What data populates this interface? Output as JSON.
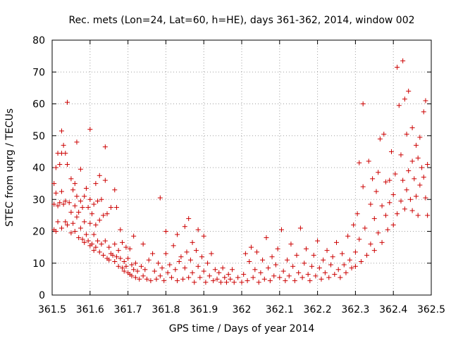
{
  "chart_data": {
    "type": "scatter",
    "title": "Rec. mets (Lon=24, Lat=60, h=HE), days 361-362, 2014, window 002",
    "xlabel": "GPS time / Days of year 2014",
    "ylabel": "STEC from uqrg / TECUs",
    "xlim": [
      361.5,
      362.5
    ],
    "ylim": [
      0,
      80
    ],
    "xticks": [
      361.5,
      361.6,
      361.7,
      361.8,
      361.9,
      362,
      362.1,
      362.2,
      362.3,
      362.4,
      362.5
    ],
    "xtick_labels": [
      "361.5",
      "361.6",
      "361.7",
      "361.8",
      "361.9",
      "362",
      "362.1",
      "362.2",
      "362.3",
      "362.4",
      "362.5"
    ],
    "yticks": [
      0,
      10,
      20,
      30,
      40,
      50,
      60,
      70,
      80
    ],
    "ytick_labels": [
      "0",
      "10",
      "20",
      "30",
      "40",
      "50",
      "60",
      "70",
      "80"
    ],
    "grid": true,
    "marker": "+",
    "color": "#cc0000",
    "series": [
      {
        "name": "STEC",
        "points": [
          [
            361.505,
            35.0
          ],
          [
            361.505,
            28.5
          ],
          [
            361.505,
            20.5
          ],
          [
            361.51,
            40.0
          ],
          [
            361.51,
            32.0
          ],
          [
            361.51,
            20.0
          ],
          [
            361.515,
            44.5
          ],
          [
            361.515,
            28.0
          ],
          [
            361.515,
            23.0
          ],
          [
            361.52,
            41.0
          ],
          [
            361.52,
            29.0
          ],
          [
            361.525,
            51.5
          ],
          [
            361.525,
            44.5
          ],
          [
            361.525,
            32.5
          ],
          [
            361.525,
            21.0
          ],
          [
            361.53,
            47.0
          ],
          [
            361.53,
            28.5
          ],
          [
            361.535,
            44.5
          ],
          [
            361.535,
            29.5
          ],
          [
            361.535,
            23.0
          ],
          [
            361.54,
            60.5
          ],
          [
            361.54,
            41.0
          ],
          [
            361.54,
            22.0
          ],
          [
            361.545,
            29.0
          ],
          [
            361.55,
            36.5
          ],
          [
            361.55,
            26.0
          ],
          [
            361.55,
            19.5
          ],
          [
            361.555,
            33.0
          ],
          [
            361.555,
            22.5
          ],
          [
            361.56,
            35.0
          ],
          [
            361.56,
            28.0
          ],
          [
            361.56,
            20.0
          ],
          [
            361.565,
            48.0
          ],
          [
            361.565,
            31.0
          ],
          [
            361.565,
            24.5
          ],
          [
            361.57,
            26.0
          ],
          [
            361.57,
            18.0
          ],
          [
            361.575,
            39.5
          ],
          [
            361.575,
            29.5
          ],
          [
            361.575,
            21.0
          ],
          [
            361.58,
            27.5
          ],
          [
            361.58,
            17.5
          ],
          [
            361.585,
            31.0
          ],
          [
            361.585,
            23.0
          ],
          [
            361.585,
            16.5
          ],
          [
            361.59,
            33.5
          ],
          [
            361.59,
            19.0
          ],
          [
            361.595,
            27.5
          ],
          [
            361.595,
            17.0
          ],
          [
            361.6,
            52.0
          ],
          [
            361.6,
            30.0
          ],
          [
            361.6,
            22.5
          ],
          [
            361.6,
            15.5
          ],
          [
            361.605,
            25.5
          ],
          [
            361.605,
            16.0
          ],
          [
            361.61,
            28.5
          ],
          [
            361.61,
            19.0
          ],
          [
            361.61,
            14.0
          ],
          [
            361.615,
            35.0
          ],
          [
            361.615,
            22.0
          ],
          [
            361.615,
            15.0
          ],
          [
            361.62,
            29.5
          ],
          [
            361.62,
            17.0
          ],
          [
            361.625,
            37.5
          ],
          [
            361.625,
            23.5
          ],
          [
            361.625,
            13.5
          ],
          [
            361.63,
            30.0
          ],
          [
            361.63,
            16.0
          ],
          [
            361.635,
            25.0
          ],
          [
            361.635,
            12.5
          ],
          [
            361.64,
            46.5
          ],
          [
            361.64,
            36.0
          ],
          [
            361.64,
            17.0
          ],
          [
            361.645,
            25.5
          ],
          [
            361.645,
            11.5
          ],
          [
            361.65,
            15.0
          ],
          [
            361.65,
            11.0
          ],
          [
            361.655,
            27.5
          ],
          [
            361.655,
            13.0
          ],
          [
            361.66,
            12.5
          ],
          [
            361.665,
            33.0
          ],
          [
            361.665,
            16.0
          ],
          [
            361.665,
            10.5
          ],
          [
            361.67,
            27.5
          ],
          [
            361.67,
            12.0
          ],
          [
            361.675,
            14.0
          ],
          [
            361.675,
            9.0
          ],
          [
            361.68,
            20.5
          ],
          [
            361.68,
            11.5
          ],
          [
            361.685,
            16.5
          ],
          [
            361.685,
            8.5
          ],
          [
            361.69,
            10.5
          ],
          [
            361.69,
            7.5
          ],
          [
            361.695,
            15.0
          ],
          [
            361.695,
            9.0
          ],
          [
            361.7,
            11.5
          ],
          [
            361.7,
            7.0
          ],
          [
            361.705,
            14.5
          ],
          [
            361.705,
            6.5
          ],
          [
            361.71,
            9.5
          ],
          [
            361.71,
            6.0
          ],
          [
            361.715,
            18.5
          ],
          [
            361.715,
            8.0
          ],
          [
            361.72,
            10.0
          ],
          [
            361.72,
            5.5
          ],
          [
            361.725,
            7.5
          ],
          [
            361.73,
            5.0
          ],
          [
            361.735,
            9.0
          ],
          [
            361.74,
            16.0
          ],
          [
            361.74,
            6.0
          ],
          [
            361.745,
            8.0
          ],
          [
            361.75,
            5.0
          ],
          [
            361.755,
            11.0
          ],
          [
            361.76,
            4.5
          ],
          [
            361.765,
            13.0
          ],
          [
            361.77,
            7.5
          ],
          [
            361.775,
            5.0
          ],
          [
            361.78,
            10.0
          ],
          [
            361.785,
            30.5
          ],
          [
            361.785,
            6.0
          ],
          [
            361.79,
            8.5
          ],
          [
            361.795,
            4.5
          ],
          [
            361.8,
            13.0
          ],
          [
            361.8,
            20.0
          ],
          [
            361.805,
            7.0
          ],
          [
            361.81,
            9.5
          ],
          [
            361.815,
            5.5
          ],
          [
            361.82,
            15.5
          ],
          [
            361.825,
            8.0
          ],
          [
            361.83,
            19.0
          ],
          [
            361.83,
            4.5
          ],
          [
            361.835,
            10.5
          ],
          [
            361.84,
            12.0
          ],
          [
            361.845,
            5.0
          ],
          [
            361.85,
            21.5
          ],
          [
            361.85,
            8.5
          ],
          [
            361.855,
            13.5
          ],
          [
            361.86,
            24.0
          ],
          [
            361.86,
            5.5
          ],
          [
            361.865,
            11.0
          ],
          [
            361.87,
            16.5
          ],
          [
            361.87,
            7.0
          ],
          [
            361.875,
            4.0
          ],
          [
            361.88,
            14.0
          ],
          [
            361.885,
            20.5
          ],
          [
            361.885,
            9.0
          ],
          [
            361.89,
            5.5
          ],
          [
            361.895,
            12.0
          ],
          [
            361.9,
            18.5
          ],
          [
            361.9,
            7.5
          ],
          [
            361.905,
            4.0
          ],
          [
            361.91,
            10.0
          ],
          [
            361.915,
            6.0
          ],
          [
            361.92,
            13.0
          ],
          [
            361.925,
            4.5
          ],
          [
            361.93,
            8.0
          ],
          [
            361.935,
            5.0
          ],
          [
            361.94,
            7.0
          ],
          [
            361.945,
            4.0
          ],
          [
            361.95,
            8.5
          ],
          [
            361.955,
            5.5
          ],
          [
            361.96,
            4.0
          ],
          [
            361.965,
            6.5
          ],
          [
            361.97,
            5.0
          ],
          [
            361.975,
            8.0
          ],
          [
            361.98,
            4.0
          ],
          [
            361.99,
            5.5
          ],
          [
            362.0,
            4.0
          ],
          [
            362.005,
            6.5
          ],
          [
            362.01,
            13.0
          ],
          [
            362.015,
            4.5
          ],
          [
            362.02,
            10.5
          ],
          [
            362.025,
            15.0
          ],
          [
            362.03,
            5.5
          ],
          [
            362.035,
            8.0
          ],
          [
            362.04,
            13.5
          ],
          [
            362.045,
            4.0
          ],
          [
            362.05,
            7.0
          ],
          [
            362.055,
            11.0
          ],
          [
            362.06,
            5.0
          ],
          [
            362.065,
            18.0
          ],
          [
            362.07,
            8.5
          ],
          [
            362.075,
            4.5
          ],
          [
            362.08,
            12.0
          ],
          [
            362.085,
            6.0
          ],
          [
            362.09,
            9.5
          ],
          [
            362.095,
            14.5
          ],
          [
            362.1,
            5.5
          ],
          [
            362.105,
            20.5
          ],
          [
            362.11,
            7.5
          ],
          [
            362.115,
            4.5
          ],
          [
            362.12,
            11.0
          ],
          [
            362.125,
            6.0
          ],
          [
            362.13,
            16.0
          ],
          [
            362.135,
            9.0
          ],
          [
            362.14,
            4.5
          ],
          [
            362.145,
            12.5
          ],
          [
            362.15,
            7.0
          ],
          [
            362.155,
            21.0
          ],
          [
            362.16,
            5.5
          ],
          [
            362.165,
            10.0
          ],
          [
            362.17,
            14.5
          ],
          [
            362.175,
            6.5
          ],
          [
            362.18,
            4.5
          ],
          [
            362.185,
            9.0
          ],
          [
            362.19,
            12.5
          ],
          [
            362.195,
            6.0
          ],
          [
            362.2,
            17.0
          ],
          [
            362.205,
            8.5
          ],
          [
            362.21,
            5.0
          ],
          [
            362.215,
            11.0
          ],
          [
            362.22,
            7.0
          ],
          [
            362.225,
            14.0
          ],
          [
            362.23,
            5.5
          ],
          [
            362.235,
            9.5
          ],
          [
            362.24,
            12.0
          ],
          [
            362.245,
            6.5
          ],
          [
            362.25,
            16.5
          ],
          [
            362.255,
            8.0
          ],
          [
            362.26,
            5.5
          ],
          [
            362.265,
            13.0
          ],
          [
            362.27,
            9.5
          ],
          [
            362.275,
            7.0
          ],
          [
            362.28,
            18.5
          ],
          [
            362.285,
            11.0
          ],
          [
            362.29,
            8.5
          ],
          [
            362.295,
            22.0
          ],
          [
            362.3,
            13.5
          ],
          [
            362.3,
            9.0
          ],
          [
            362.305,
            25.5
          ],
          [
            362.31,
            41.5
          ],
          [
            362.31,
            17.5
          ],
          [
            362.315,
            10.5
          ],
          [
            362.32,
            60.0
          ],
          [
            362.32,
            34.0
          ],
          [
            362.325,
            21.0
          ],
          [
            362.33,
            12.5
          ],
          [
            362.335,
            42.0
          ],
          [
            362.34,
            28.5
          ],
          [
            362.34,
            16.0
          ],
          [
            362.345,
            36.5
          ],
          [
            362.35,
            24.0
          ],
          [
            362.35,
            14.0
          ],
          [
            362.355,
            32.5
          ],
          [
            362.36,
            38.5
          ],
          [
            362.36,
            19.5
          ],
          [
            362.365,
            49.0
          ],
          [
            362.37,
            28.0
          ],
          [
            362.37,
            16.5
          ],
          [
            362.375,
            50.5
          ],
          [
            362.38,
            35.5
          ],
          [
            362.38,
            25.0
          ],
          [
            362.385,
            20.5
          ],
          [
            362.39,
            36.0
          ],
          [
            362.39,
            29.0
          ],
          [
            362.395,
            45.0
          ],
          [
            362.4,
            31.5
          ],
          [
            362.4,
            22.0
          ],
          [
            362.405,
            38.0
          ],
          [
            362.41,
            71.5
          ],
          [
            362.41,
            25.5
          ],
          [
            362.415,
            59.5
          ],
          [
            362.42,
            44.0
          ],
          [
            362.42,
            29.5
          ],
          [
            362.425,
            73.5
          ],
          [
            362.425,
            36.0
          ],
          [
            362.43,
            61.5
          ],
          [
            362.43,
            27.0
          ],
          [
            362.435,
            50.5
          ],
          [
            362.435,
            33.0
          ],
          [
            362.44,
            64.0
          ],
          [
            362.44,
            39.0
          ],
          [
            362.445,
            30.0
          ],
          [
            362.45,
            52.5
          ],
          [
            362.45,
            42.0
          ],
          [
            362.45,
            26.5
          ],
          [
            362.455,
            36.5
          ],
          [
            362.46,
            47.0
          ],
          [
            362.46,
            31.0
          ],
          [
            362.465,
            43.0
          ],
          [
            362.465,
            25.0
          ],
          [
            362.47,
            49.5
          ],
          [
            362.47,
            34.5
          ],
          [
            362.475,
            40.0
          ],
          [
            362.48,
            57.5
          ],
          [
            362.48,
            37.0
          ],
          [
            362.485,
            61.0
          ],
          [
            362.485,
            30.5
          ],
          [
            362.49,
            41.0
          ],
          [
            362.49,
            25.0
          ]
        ]
      }
    ]
  }
}
